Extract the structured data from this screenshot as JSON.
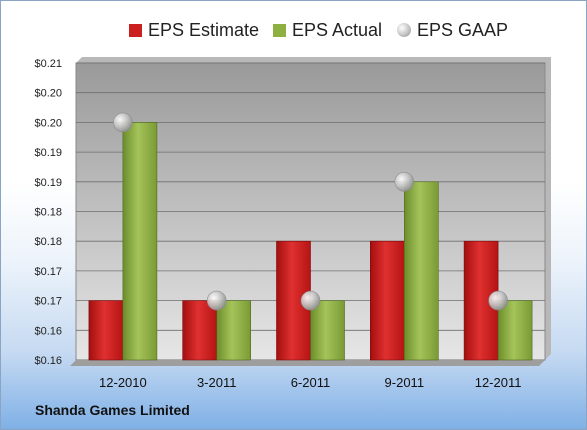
{
  "company": "Shanda Games Limited",
  "legend": [
    {
      "name": "EPS Estimate",
      "color": "#cc1f1f",
      "marker": "square"
    },
    {
      "name": "EPS Actual",
      "color": "#8db040",
      "marker": "square"
    },
    {
      "name": "EPS GAAP",
      "color": "#a8a8a8",
      "marker": "circle"
    }
  ],
  "chart_data": {
    "type": "bar",
    "title": "",
    "xlabel": "",
    "ylabel": "",
    "categories": [
      "12-2010",
      "3-2011",
      "6-2011",
      "9-2011",
      "12-2011"
    ],
    "series": [
      {
        "name": "EPS Estimate",
        "type": "bar",
        "values": [
          0.17,
          0.17,
          0.18,
          0.18,
          0.18
        ],
        "color": "#cc1f1f"
      },
      {
        "name": "EPS Actual",
        "type": "bar",
        "values": [
          0.2,
          0.17,
          0.17,
          0.19,
          0.17
        ],
        "color": "#8db040"
      },
      {
        "name": "EPS GAAP",
        "type": "scatter",
        "values": [
          0.2,
          0.17,
          0.17,
          0.19,
          0.17
        ],
        "color": "#a8a8a8"
      }
    ],
    "ylim": [
      0.16,
      0.21
    ],
    "yticks": [
      0.16,
      0.165,
      0.17,
      0.175,
      0.18,
      0.185,
      0.19,
      0.195,
      0.2,
      0.205,
      0.21
    ],
    "ytick_labels": [
      "$0.16",
      "$0.16",
      "$0.17",
      "$0.17",
      "$0.18",
      "$0.18",
      "$0.19",
      "$0.19",
      "$0.20",
      "$0.20",
      "$0.21"
    ],
    "grid": true,
    "legend_position": "top"
  }
}
